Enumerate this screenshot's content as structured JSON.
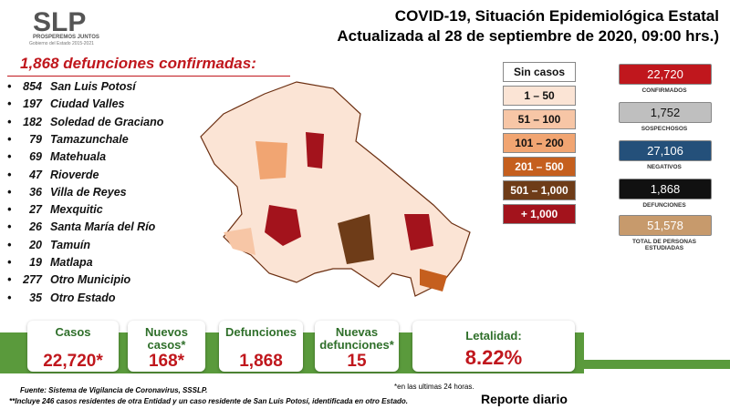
{
  "header": {
    "logo": "SLP",
    "logo_tagline": "PROSPEREMOS JUNTOS",
    "logo_sub": "Gobierno del Estado 2015-2021",
    "title_line1": "COVID-19, Situación Epidemiológica Estatal",
    "title_line2": "Actualizada al 28 de septiembre de 2020, 09:00 hrs.)"
  },
  "deaths": {
    "heading": "1,868 defunciones confirmadas:",
    "rows": [
      [
        "854",
        "San Luis Potosí"
      ],
      [
        "197",
        "Ciudad Valles"
      ],
      [
        "182",
        "Soledad de Graciano"
      ],
      [
        "79",
        "Tamazunchale"
      ],
      [
        "69",
        "Matehuala"
      ],
      [
        "47",
        "Rioverde"
      ],
      [
        "36",
        "Villa de Reyes"
      ],
      [
        "27",
        "Mexquitic"
      ],
      [
        "26",
        "Santa María del Río"
      ],
      [
        "20",
        "Tamuín"
      ],
      [
        "19",
        "Matlapa"
      ],
      [
        "277",
        "Otro Municipio"
      ],
      [
        "35",
        "Otro Estado"
      ]
    ]
  },
  "legend": [
    {
      "label": "Sin casos",
      "color": "#ffffff"
    },
    {
      "label": "1 – 50",
      "color": "#fbe4d5"
    },
    {
      "label": "51 – 100",
      "color": "#f7c6a6"
    },
    {
      "label": "101 – 200",
      "color": "#f1a572"
    },
    {
      "label": "201 – 500",
      "color": "#c55f1e"
    },
    {
      "label": "501 – 1,000",
      "color": "#6e3c18"
    },
    {
      "label": "+ 1,000",
      "color": "#a3131c"
    }
  ],
  "stats": [
    {
      "value": "22,720",
      "label": "CONFIRMADOS",
      "color": "#c0171d"
    },
    {
      "value": "1,752",
      "label": "SOSPECHOSOS",
      "color": "#bfbfbf"
    },
    {
      "value": "27,106",
      "label": "NEGATIVOS",
      "color": "#24507a"
    },
    {
      "value": "1,868",
      "label": "DEFUNCIONES",
      "color": "#111111"
    },
    {
      "value": "51,578",
      "label": "TOTAL DE PERSONAS ESTUDIADAS",
      "color": "#c79a6c"
    }
  ],
  "summary": [
    {
      "label": "Casos",
      "value": "22,720*"
    },
    {
      "label": "Nuevos casos*",
      "value": "168*"
    },
    {
      "label": "Defunciones",
      "value": "1,868"
    },
    {
      "label": "Nuevas defunciones*",
      "value": "15"
    },
    {
      "label": "Letalidad:",
      "value": "8.22%"
    }
  ],
  "footer": {
    "source": "Fuente: Sistema de Vigilancia de Coronavirus, SSSLP.",
    "note": "**Incluye 246 casos residentes de otra Entidad y un caso residente de San Luis Potosí, identificada en otro Estado.",
    "last24": "*en las ultimas 24 horas.",
    "report": "Reporte diario"
  }
}
